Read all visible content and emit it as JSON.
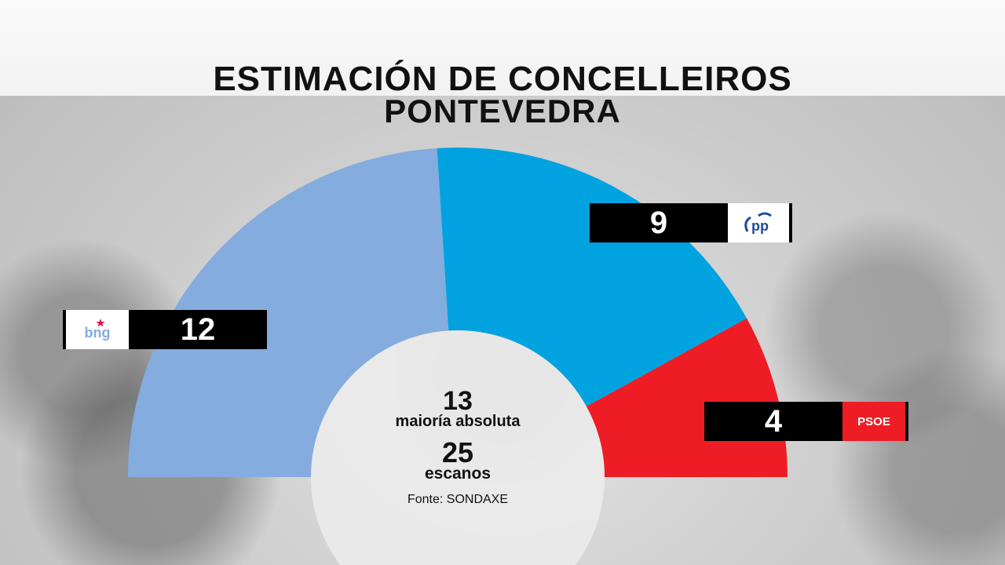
{
  "title": "ESTIMACIÓN DE CONCELLEIROS",
  "subtitle": "PONTEVEDRA",
  "center": {
    "majority_value": "13",
    "majority_label": "maioría absoluta",
    "total_value": "25",
    "total_label": "escanos",
    "source": "Fonte: SONDAXE"
  },
  "chart_data": {
    "type": "pie",
    "subtype": "half-donut (parliament)",
    "title": "ESTIMACIÓN DE CONCELLEIROS",
    "subtitle": "PONTEVEDRA",
    "total_seats": 25,
    "majority": 13,
    "categories": [
      "BNG",
      "PP",
      "PSOE"
    ],
    "values": [
      12,
      9,
      4
    ],
    "colors": [
      "#84acde",
      "#00a3df",
      "#ee1c25"
    ],
    "labels": {
      "bng": {
        "value": "12",
        "logo": "bng"
      },
      "pp": {
        "value": "9",
        "logo": "pp"
      },
      "psoe": {
        "value": "4",
        "logo": "PSOE"
      }
    }
  }
}
